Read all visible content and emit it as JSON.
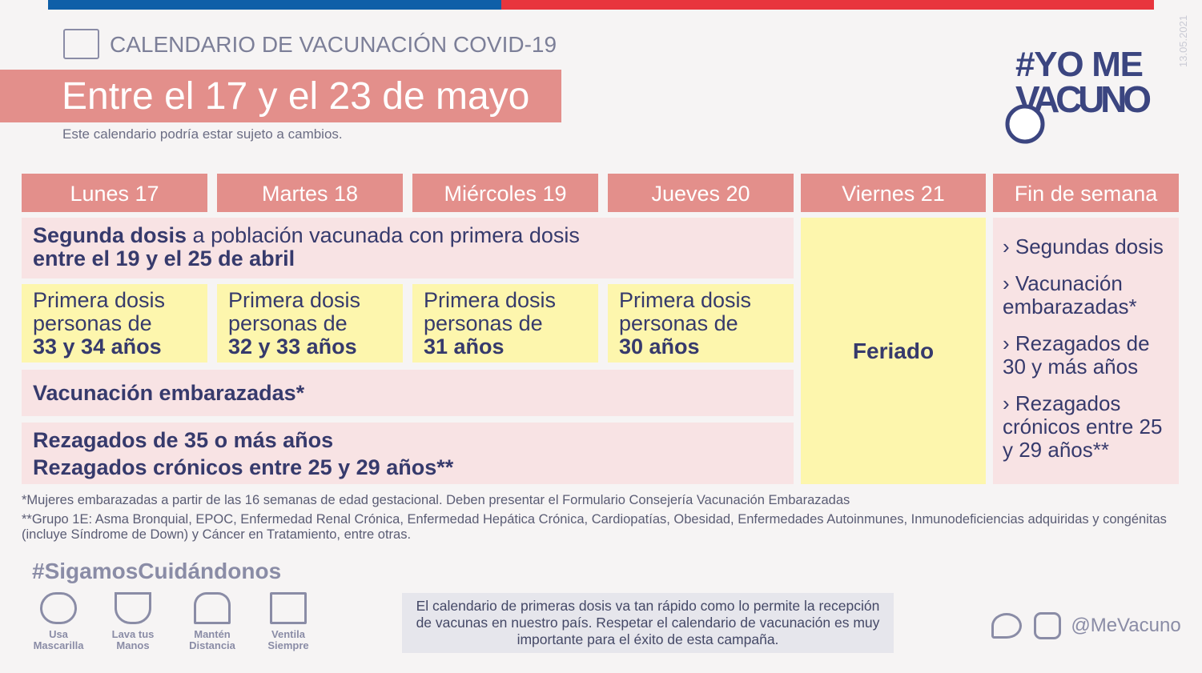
{
  "header": {
    "subtitle": "CALENDARIO DE VACUNACIÓN COVID-19",
    "title": "Entre el 17 y el 23 de mayo",
    "note": "Este calendario podría estar sujeto a cambios.",
    "date": "13.05.2021",
    "logo": "#YO ME VACUNO"
  },
  "colors": {
    "blue": "#0f5fa8",
    "red": "#e8353d",
    "header_pink": "#e38f8b",
    "light_pink": "#f8e3e4",
    "yellow": "#fdf6ad",
    "navy": "#363a6c"
  },
  "days": [
    "Lunes 17",
    "Martes 18",
    "Miércoles 19",
    "Jueves 20",
    "Viernes 21",
    "Fin de semana"
  ],
  "rows": {
    "segunda": {
      "bold": "Segunda dosis",
      "rest": " a población vacunada con primera dosis",
      "line2": "entre el 19 y el 25 de abril"
    },
    "primera": [
      {
        "l1": "Primera dosis",
        "l2": "personas de",
        "l3": "33 y 34 años"
      },
      {
        "l1": "Primera dosis",
        "l2": "personas de",
        "l3": "32 y 33 años"
      },
      {
        "l1": "Primera dosis",
        "l2": "personas de",
        "l3": "31 años"
      },
      {
        "l1": "Primera dosis",
        "l2": "personas de",
        "l3": "30 años"
      }
    ],
    "embarazadas": "Vacunación embarazadas*",
    "rezagados1": "Rezagados de 35 o más años",
    "rezagados2": "Rezagados crónicos entre 25 y 29 años**"
  },
  "feriado": "Feriado",
  "weekend": [
    "› Segundas dosis",
    "› Vacunación embarazadas*",
    "› Rezagados de 30 y más años",
    "› Rezagados crónicos entre 25 y 29 años**"
  ],
  "footnotes": [
    "*Mujeres embarazadas a partir de las 16 semanas de edad gestacional. Deben presentar el Formulario Consejería Vacunación Embarazadas",
    "**Grupo 1E: Asma Bronquial, EPOC, Enfermedad Renal Crónica, Enfermedad Hepática Crónica, Cardiopatías, Obesidad, Enfermedades Autoinmunes, Inmunodeficiencias adquiridas y congénitas (incluye Síndrome de Down) y Cáncer en Tratamiento, entre otras."
  ],
  "hashtag": "#SigamosCuidándonos",
  "tips": [
    {
      "l1": "Usa",
      "l2": "Mascarilla",
      "icon": "mask-icon"
    },
    {
      "l1": "Lava tus",
      "l2": "Manos",
      "icon": "hand-wash-icon"
    },
    {
      "l1": "Mantén",
      "l2": "Distancia",
      "icon": "distance-icon"
    },
    {
      "l1": "Ventila",
      "l2": "Siempre",
      "icon": "window-icon"
    }
  ],
  "message": "El calendario de primeras dosis va tan rápido como lo permite la recepción de vacunas en nuestro país. Respetar el calendario de vacunación es muy importante para el éxito de esta campaña.",
  "social": {
    "handle": "@MeVacuno",
    "icons": [
      "twitter-icon",
      "instagram-icon"
    ]
  }
}
